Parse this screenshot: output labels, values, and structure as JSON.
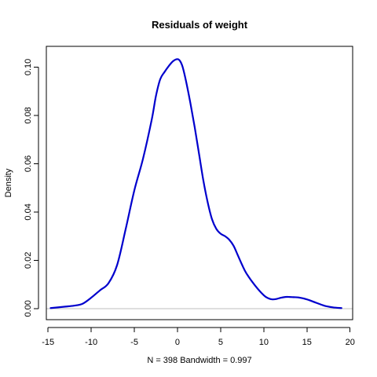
{
  "chart_data": {
    "type": "line",
    "title": "Residuals of weight",
    "xlabel": "N = 398   Bandwidth = 0.997",
    "ylabel": "Density",
    "xlim": [
      -15.2,
      20.3
    ],
    "ylim": [
      -0.0046,
      0.1086
    ],
    "xticks": [
      -15,
      -10,
      -5,
      0,
      5,
      10,
      15,
      20
    ],
    "yticks": [
      0.0,
      0.02,
      0.04,
      0.06,
      0.08,
      0.1
    ],
    "ytick_labels": [
      "0.00",
      "0.02",
      "0.04",
      "0.06",
      "0.08",
      "0.10"
    ],
    "grid": false,
    "legend": "none",
    "reference_line_y": 0,
    "series": [
      {
        "color": "#0000cd",
        "x": [
          -14.7,
          -13.0,
          -12.0,
          -11.0,
          -10.0,
          -9.0,
          -8.0,
          -7.0,
          -6.0,
          -5.0,
          -4.0,
          -3.0,
          -2.5,
          -2.0,
          -1.5,
          -1.0,
          -0.5,
          0.0,
          0.3,
          0.6,
          1.0,
          1.5,
          2.0,
          2.5,
          3.0,
          3.5,
          4.0,
          4.5,
          5.0,
          5.5,
          6.0,
          6.5,
          7.0,
          7.5,
          8.0,
          9.0,
          10.0,
          10.5,
          11.0,
          11.5,
          12.0,
          12.5,
          13.0,
          13.5,
          14.0,
          15.0,
          16.0,
          17.0,
          18.0,
          19.0
        ],
        "y": [
          0.0002,
          0.0008,
          0.0012,
          0.002,
          0.0045,
          0.0075,
          0.0105,
          0.018,
          0.033,
          0.049,
          0.062,
          0.078,
          0.088,
          0.095,
          0.098,
          0.1005,
          0.1025,
          0.1033,
          0.1025,
          0.1,
          0.094,
          0.085,
          0.075,
          0.064,
          0.053,
          0.044,
          0.037,
          0.033,
          0.031,
          0.03,
          0.0285,
          0.026,
          0.022,
          0.018,
          0.0145,
          0.0095,
          0.0055,
          0.0043,
          0.0038,
          0.004,
          0.0045,
          0.0048,
          0.0048,
          0.0047,
          0.0046,
          0.0038,
          0.0025,
          0.0012,
          0.0005,
          0.0002
        ]
      }
    ]
  }
}
